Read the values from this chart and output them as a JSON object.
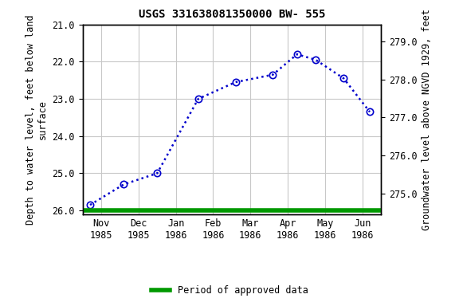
{
  "title": "USGS 331638081350000 BW- 555",
  "ylabel_left": "Depth to water level, feet below land\nsurface",
  "ylabel_right": "Groundwater level above NGVD 1929, feet",
  "x_labels": [
    "Nov\n1985",
    "Dec\n1985",
    "Jan\n1986",
    "Feb\n1986",
    "Mar\n1986",
    "Apr\n1986",
    "May\n1986",
    "Jun\n1986"
  ],
  "x_positions": [
    0.5,
    1.5,
    2.5,
    3.5,
    4.5,
    5.5,
    6.5,
    7.5
  ],
  "xlim": [
    0,
    8
  ],
  "data_x": [
    0.2,
    1.1,
    2.0,
    3.1,
    4.1,
    5.1,
    5.75,
    6.25,
    7.0,
    7.7
  ],
  "data_y_depth": [
    25.85,
    25.3,
    25.0,
    23.0,
    22.55,
    22.35,
    21.8,
    21.95,
    22.45,
    23.35
  ],
  "ylim_left": [
    26.1,
    21.0
  ],
  "ylim_right": [
    274.45,
    279.45
  ],
  "yticks_left": [
    21.0,
    22.0,
    23.0,
    24.0,
    25.0,
    26.0
  ],
  "yticks_right": [
    275.0,
    276.0,
    277.0,
    278.0,
    279.0
  ],
  "line_color": "#0000cc",
  "marker_color": "#0000cc",
  "green_line_color": "#009900",
  "legend_label": "Period of approved data",
  "background_color": "#ffffff",
  "grid_color": "#c8c8c8",
  "title_fontsize": 10,
  "axis_label_fontsize": 8.5,
  "tick_fontsize": 8.5
}
